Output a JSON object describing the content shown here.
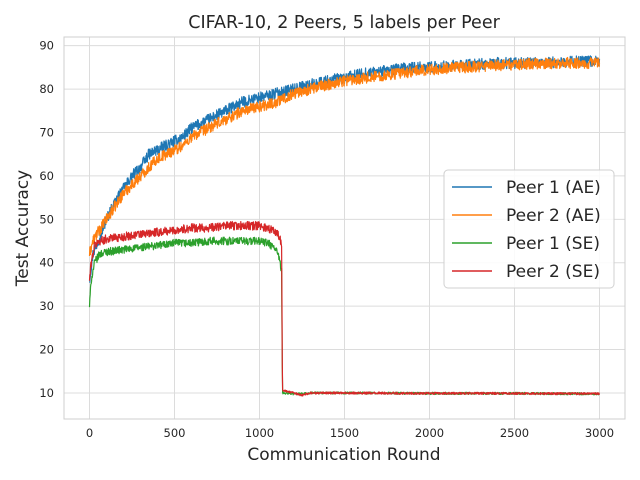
{
  "chart_data": {
    "type": "line",
    "title": "CIFAR-10, 2 Peers, 5 labels per Peer",
    "xlabel": "Communication Round",
    "ylabel": "Test Accuracy",
    "xlim": [
      -150,
      3150
    ],
    "ylim": [
      4,
      92
    ],
    "xticks": [
      0,
      500,
      1000,
      1500,
      2000,
      2500,
      3000
    ],
    "yticks": [
      10,
      20,
      30,
      40,
      50,
      60,
      70,
      80,
      90
    ],
    "grid": true,
    "legend_position": "center-right",
    "series": [
      {
        "name": "Peer 1 (AE)",
        "color": "#1f77b4",
        "noise": 1.3,
        "x": [
          0,
          20,
          50,
          100,
          150,
          200,
          250,
          300,
          350,
          400,
          450,
          500,
          550,
          600,
          650,
          700,
          750,
          800,
          850,
          900,
          950,
          1000,
          1100,
          1200,
          1300,
          1400,
          1500,
          1600,
          1700,
          1800,
          1900,
          2000,
          2200,
          2400,
          2600,
          2800,
          3000
        ],
        "y": [
          36,
          42,
          45,
          50,
          54,
          57,
          60,
          62,
          65,
          66,
          67,
          68,
          69,
          71,
          72,
          73,
          74,
          75,
          76,
          77,
          77.5,
          78,
          79,
          80,
          81,
          82,
          82.5,
          83.5,
          84,
          84.5,
          85,
          85,
          85.5,
          86,
          86,
          86.3,
          86.5
        ]
      },
      {
        "name": "Peer 2 (AE)",
        "color": "#ff7f0e",
        "noise": 1.3,
        "x": [
          0,
          20,
          50,
          100,
          150,
          200,
          250,
          300,
          350,
          400,
          450,
          500,
          550,
          600,
          650,
          700,
          750,
          800,
          850,
          900,
          950,
          1000,
          1100,
          1200,
          1300,
          1400,
          1500,
          1600,
          1700,
          1800,
          1900,
          2000,
          2200,
          2400,
          2600,
          2800,
          3000
        ],
        "y": [
          42,
          45,
          47,
          50,
          53,
          56,
          58,
          60,
          62,
          64,
          65,
          66,
          67,
          69,
          70,
          71,
          72,
          73,
          74,
          75,
          75.5,
          76,
          77,
          79,
          80,
          81,
          82,
          82.5,
          83,
          83.5,
          84,
          84.5,
          85,
          85.5,
          85.8,
          86,
          86
        ]
      },
      {
        "name": "Peer 1 (SE)",
        "color": "#2ca02c",
        "noise": 0.9,
        "x": [
          0,
          10,
          30,
          60,
          100,
          200,
          300,
          400,
          500,
          600,
          700,
          800,
          900,
          1000,
          1050,
          1100,
          1120,
          1130,
          1135,
          1140,
          1200,
          1250,
          1300,
          1500,
          2000,
          2500,
          3000
        ],
        "y": [
          30,
          36,
          40,
          42,
          42.5,
          43,
          43.5,
          44,
          44.5,
          44.5,
          45,
          45,
          45,
          45,
          44.5,
          43,
          40,
          38,
          10,
          10,
          9.8,
          9.8,
          10,
          10,
          9.9,
          9.9,
          9.8
        ]
      },
      {
        "name": "Peer 2 (SE)",
        "color": "#d62728",
        "noise": 1.0,
        "x": [
          0,
          10,
          30,
          60,
          100,
          200,
          300,
          400,
          500,
          600,
          700,
          800,
          900,
          1000,
          1050,
          1100,
          1120,
          1130,
          1135,
          1140,
          1200,
          1250,
          1300,
          1500,
          2000,
          2500,
          3000
        ],
        "y": [
          36,
          40,
          44,
          45,
          45.5,
          46,
          46.5,
          47,
          47.5,
          48,
          48,
          48.5,
          48.5,
          48.5,
          48,
          47,
          46,
          44,
          11,
          10.5,
          10,
          9.5,
          10,
          10,
          9.9,
          9.9,
          9.8
        ]
      }
    ]
  }
}
